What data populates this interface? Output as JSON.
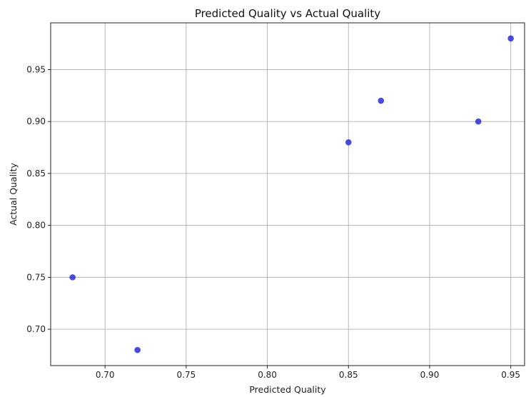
{
  "chart_data": {
    "type": "scatter",
    "title": "Predicted Quality vs Actual Quality",
    "xlabel": "Predicted Quality",
    "ylabel": "Actual Quality",
    "xlim": [
      0.6665,
      0.9585
    ],
    "ylim": [
      0.665,
      0.995
    ],
    "xticks": [
      "0.70",
      "0.75",
      "0.80",
      "0.85",
      "0.90",
      "0.95"
    ],
    "yticks": [
      "0.70",
      "0.75",
      "0.80",
      "0.85",
      "0.90",
      "0.95"
    ],
    "grid": true,
    "point_color": "#2b2bd6",
    "points": [
      {
        "x": 0.68,
        "y": 0.75
      },
      {
        "x": 0.72,
        "y": 0.68
      },
      {
        "x": 0.85,
        "y": 0.88
      },
      {
        "x": 0.87,
        "y": 0.92
      },
      {
        "x": 0.93,
        "y": 0.9
      },
      {
        "x": 0.95,
        "y": 0.98
      }
    ]
  }
}
